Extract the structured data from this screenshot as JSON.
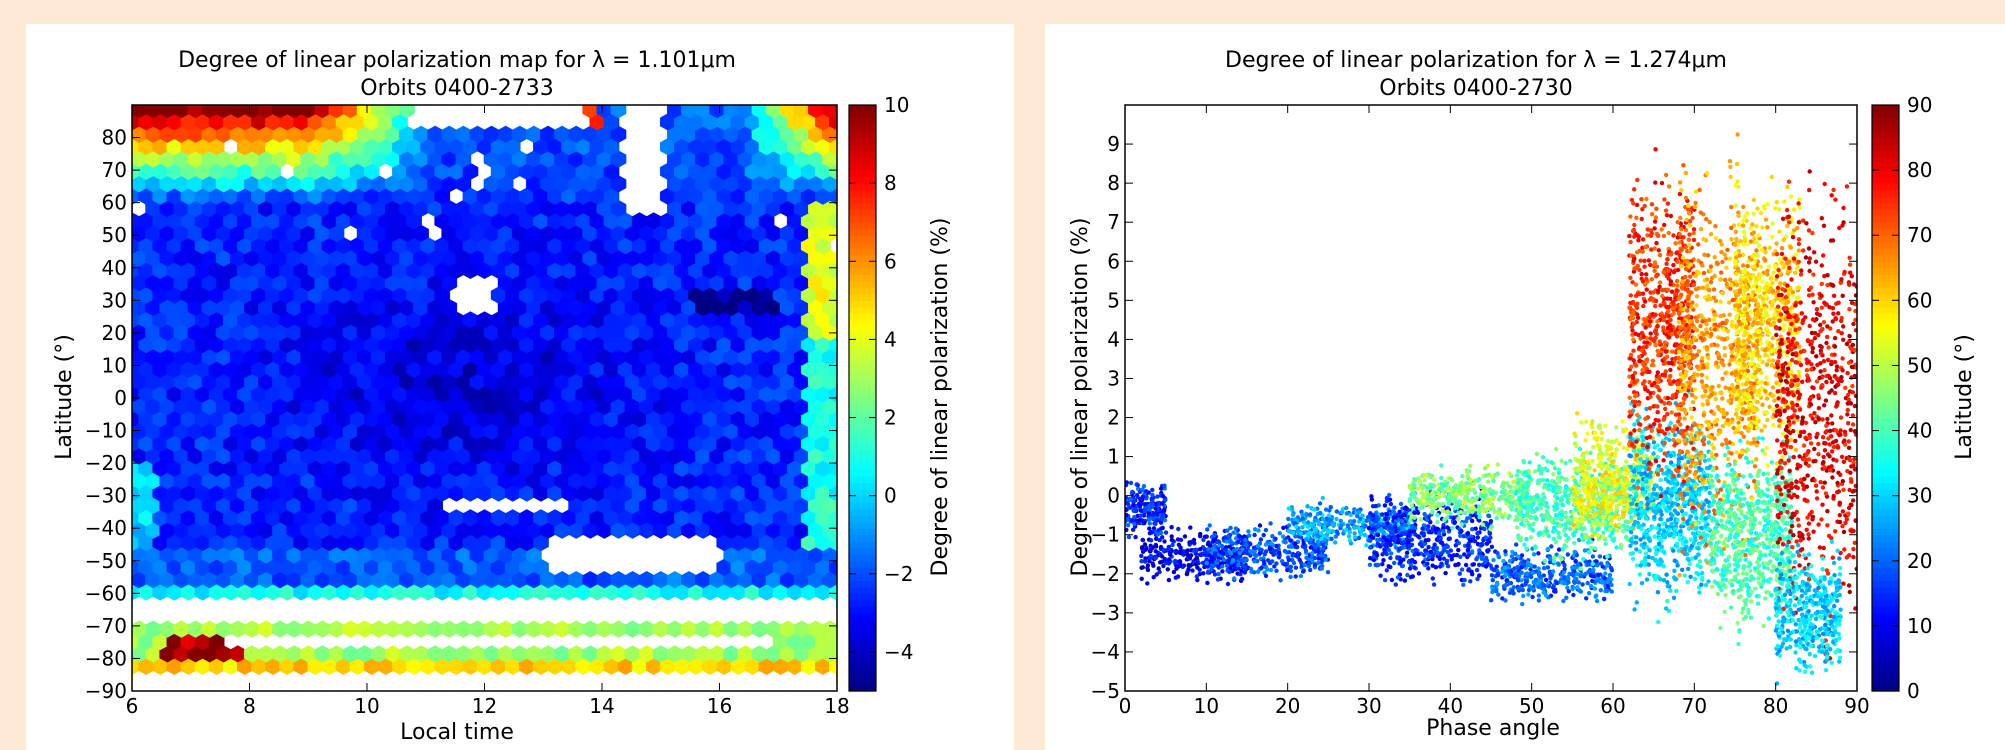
{
  "colors": {
    "page_background": "#fde9d6",
    "panel_background": "#ffffff",
    "colormap": "jet"
  },
  "chart_data": [
    {
      "type": "heatmap",
      "subtype": "hexbin",
      "title": "Degree of linear polarization map for λ = 1.101μm",
      "subtitle": "Orbits 0400-2733",
      "xlabel": "Local time",
      "ylabel": "Latitude (°)",
      "colorbar_label": "Degree of linear polarization (%)",
      "xlim": [
        6,
        18
      ],
      "ylim": [
        -90,
        90
      ],
      "clim": [
        -5,
        10
      ],
      "x_ticks": [
        "6",
        "8",
        "10",
        "12",
        "14",
        "16",
        "18"
      ],
      "y_ticks": [
        "80",
        "70",
        "60",
        "50",
        "40",
        "30",
        "20",
        "10",
        "0",
        "−10",
        "−20",
        "−30",
        "−40",
        "−50",
        "−60",
        "−70",
        "−80",
        "−90"
      ],
      "colorbar_ticks": [
        "10",
        "8",
        "6",
        "4",
        "2",
        "0",
        "−2",
        "−4"
      ],
      "grid": false,
      "value_zones": [
        {
          "region": "lat 75 to 90, local time 6-11",
          "value": 8
        },
        {
          "region": "lat 75 to 90, local time 16.5-18",
          "value": 8
        },
        {
          "region": "lat 60 to 75, local time 6-11",
          "value": 4
        },
        {
          "region": "lat -50 to 60, most local times",
          "value": -2.5
        },
        {
          "region": "lat -30 to 40, local time 8-15",
          "value": -3.5
        },
        {
          "region": "lat -60 to -50",
          "value": -1.5
        },
        {
          "region": "lat -75 to -60",
          "value": 1.5
        },
        {
          "region": "lat -85 to -75",
          "value": 3.5
        },
        {
          "region": "lat -80 to -70, local time 6.5-8",
          "value": 9
        },
        {
          "region": "lat 20 to 80, local time 17.5-18",
          "value": 3
        },
        {
          "region": "lat 30, local time 15.5-17",
          "value": -4.5
        }
      ],
      "empty_regions": [
        {
          "local_time": [
            10.8,
            13.8
          ],
          "latitude": [
            82,
            90
          ]
        },
        {
          "local_time": [
            14.4,
            15.1
          ],
          "latitude": [
            55,
            90
          ]
        },
        {
          "local_time": [
            11.5,
            12.2
          ],
          "latitude": [
            26,
            36
          ]
        },
        {
          "local_time": [
            11.2,
            13.5
          ],
          "latitude": [
            -36,
            -31
          ]
        },
        {
          "local_time": [
            13.0,
            16.0
          ],
          "latitude": [
            -52,
            -44
          ]
        },
        {
          "local_time": [
            6.0,
            18.0
          ],
          "latitude": [
            -68,
            -62
          ]
        },
        {
          "local_time": [
            7.5,
            17.0
          ],
          "latitude": [
            -78,
            -72
          ]
        },
        {
          "local_time": [
            6.0,
            18.0
          ],
          "latitude": [
            -90,
            -86
          ]
        }
      ]
    },
    {
      "type": "scatter",
      "title": "Degree of linear polarization for λ = 1.274μm",
      "subtitle": "Orbits 0400-2730",
      "xlabel": "Phase angle",
      "ylabel": "Degree of linear polarization (%)",
      "colorbar_label": "Latitude (°)",
      "xlim": [
        0,
        90
      ],
      "ylim": [
        -5,
        10
      ],
      "clim": [
        0,
        90
      ],
      "x_ticks": [
        "0",
        "10",
        "20",
        "30",
        "40",
        "50",
        "60",
        "70",
        "80",
        "90"
      ],
      "y_ticks": [
        "9",
        "8",
        "7",
        "6",
        "5",
        "4",
        "3",
        "2",
        "1",
        "0",
        "−1",
        "−2",
        "−3",
        "−4",
        "−5"
      ],
      "colorbar_ticks": [
        "90",
        "80",
        "70",
        "60",
        "50",
        "40",
        "30",
        "20",
        "10",
        "0"
      ],
      "grid": false,
      "bands": [
        {
          "phase": [
            0,
            5
          ],
          "dolp": [
            -1.3,
            0.6
          ],
          "latitude": 15
        },
        {
          "phase": [
            2,
            15
          ],
          "dolp": [
            -2.4,
            -0.7
          ],
          "latitude": 10
        },
        {
          "phase": [
            10,
            25
          ],
          "dolp": [
            -2.3,
            -0.6
          ],
          "latitude": 18
        },
        {
          "phase": [
            20,
            35
          ],
          "dolp": [
            -1.5,
            0.0
          ],
          "latitude": 25
        },
        {
          "phase": [
            30,
            45
          ],
          "dolp": [
            -2.6,
            0.4
          ],
          "latitude": 15
        },
        {
          "phase": [
            35,
            50
          ],
          "dolp": [
            -1.0,
            1.0
          ],
          "latitude": 45
        },
        {
          "phase": [
            45,
            60
          ],
          "dolp": [
            -3.0,
            -1.0
          ],
          "latitude": 20
        },
        {
          "phase": [
            48,
            62
          ],
          "dolp": [
            -2.0,
            1.5
          ],
          "latitude": 40
        },
        {
          "phase": [
            55,
            65
          ],
          "dolp": [
            -1.5,
            2.3
          ],
          "latitude": 55
        },
        {
          "phase": [
            62,
            72
          ],
          "dolp": [
            -3.5,
            3.0
          ],
          "latitude": 30
        },
        {
          "phase": [
            62,
            70
          ],
          "dolp": [
            -1.0,
            9.5
          ],
          "latitude": 75
        },
        {
          "phase": [
            68,
            78
          ],
          "dolp": [
            -3.0,
            10.0
          ],
          "latitude": 65
        },
        {
          "phase": [
            72,
            82
          ],
          "dolp": [
            -4.0,
            2.0
          ],
          "latitude": 40
        },
        {
          "phase": [
            75,
            83
          ],
          "dolp": [
            0.0,
            8.5
          ],
          "latitude": 60
        },
        {
          "phase": [
            80,
            90
          ],
          "dolp": [
            -5.0,
            10.0
          ],
          "latitude": 80
        },
        {
          "phase": [
            80,
            88
          ],
          "dolp": [
            -5.0,
            -1.0
          ],
          "latitude": 30
        }
      ]
    }
  ]
}
